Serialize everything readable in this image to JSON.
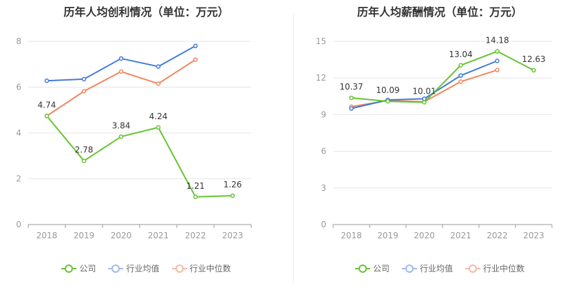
{
  "chart_data": [
    {
      "type": "line",
      "title": "历年人均创利情况（单位：万元）",
      "categories": [
        "2018",
        "2019",
        "2020",
        "2021",
        "2022",
        "2023"
      ],
      "ylim": [
        0,
        8
      ],
      "yticks": [
        "0",
        "2",
        "4",
        "6",
        "8"
      ],
      "grid": true,
      "legend_position": "bottom-center",
      "series": [
        {
          "name": "公司",
          "color": "#66c431",
          "values": [
            4.74,
            2.78,
            3.84,
            4.24,
            1.21,
            1.26
          ],
          "labels": [
            "4.74",
            "2.78",
            "3.84",
            "4.24",
            "1.21",
            "1.26"
          ]
        },
        {
          "name": "行业均值",
          "color": "#3f7ad8",
          "values": [
            6.28,
            6.35,
            7.25,
            6.9,
            7.8,
            null
          ]
        },
        {
          "name": "行业中位数",
          "color": "#f0875e",
          "values": [
            4.74,
            5.82,
            6.68,
            6.15,
            7.2,
            null
          ]
        }
      ]
    },
    {
      "type": "line",
      "title": "历年人均薪酬情况（单位：万元）",
      "categories": [
        "2018",
        "2019",
        "2020",
        "2021",
        "2022",
        "2023"
      ],
      "ylim": [
        0,
        15
      ],
      "yticks": [
        "0",
        "3",
        "6",
        "9",
        "12",
        "15"
      ],
      "grid": true,
      "legend_position": "bottom-center",
      "series": [
        {
          "name": "公司",
          "color": "#66c431",
          "values": [
            10.37,
            10.09,
            10.01,
            13.04,
            14.18,
            12.63
          ],
          "labels": [
            "10.37",
            "10.09",
            "10.01",
            "13.04",
            "14.18",
            "12.63"
          ]
        },
        {
          "name": "行业均值",
          "color": "#3f7ad8",
          "values": [
            9.5,
            10.2,
            10.3,
            12.2,
            13.4,
            null
          ]
        },
        {
          "name": "行业中位数",
          "color": "#f0875e",
          "values": [
            9.65,
            10.15,
            10.05,
            11.7,
            12.65,
            null
          ]
        }
      ]
    }
  ],
  "legend": {
    "company": "公司",
    "industry_avg": "行业均值",
    "industry_median": "行业中位数"
  }
}
